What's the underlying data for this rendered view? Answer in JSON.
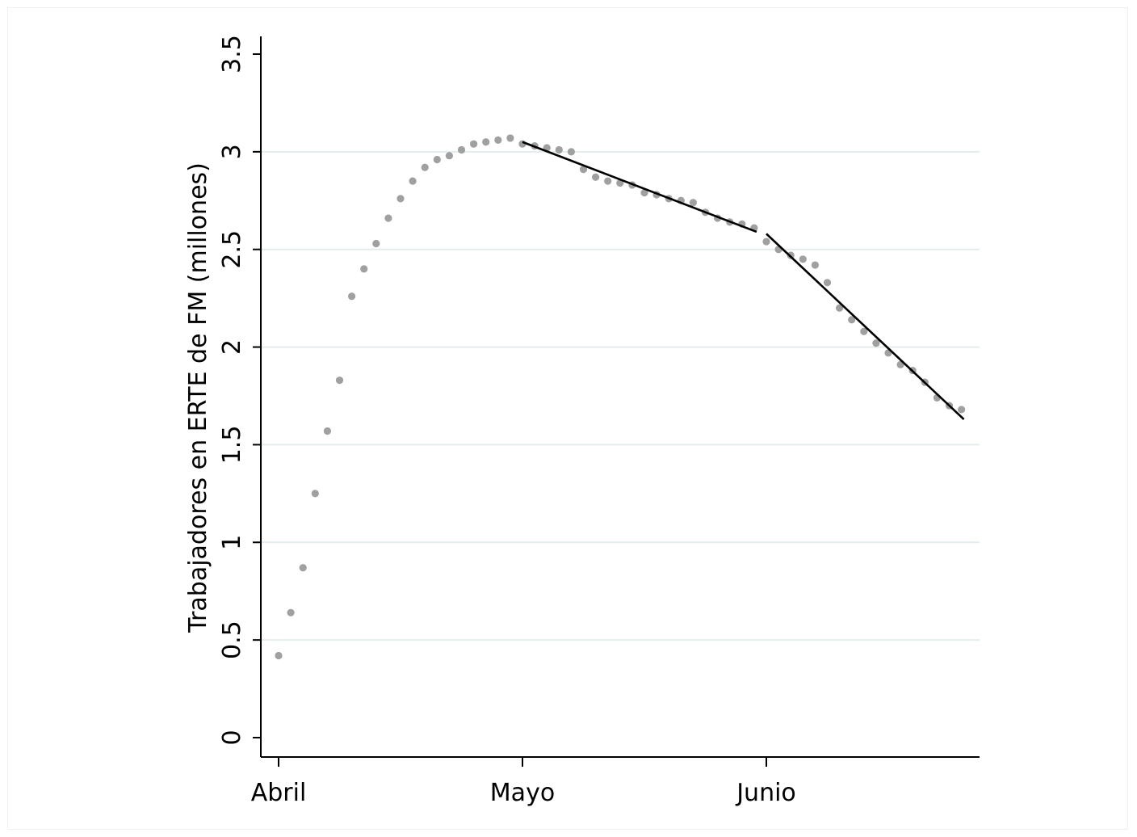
{
  "chart_data": {
    "type": "scatter",
    "title": "",
    "xlabel": "",
    "ylabel": "Trabajadores en ERTE de FM (millones)",
    "ylim": [
      0,
      3.5
    ],
    "yticks": [
      {
        "value": 0,
        "label": "0"
      },
      {
        "value": 0.5,
        "label": "0.5"
      },
      {
        "value": 1,
        "label": "1"
      },
      {
        "value": 1.5,
        "label": "1.5"
      },
      {
        "value": 2,
        "label": "2"
      },
      {
        "value": 2.5,
        "label": "2.5"
      },
      {
        "value": 3,
        "label": "3"
      },
      {
        "value": 3.5,
        "label": "3.5"
      }
    ],
    "xticks": [
      {
        "value": 0,
        "label": "Abril"
      },
      {
        "value": 20,
        "label": "Mayo"
      },
      {
        "value": 40,
        "label": "Junio"
      }
    ],
    "xlim": [
      -1.4,
      57.5
    ],
    "grid": true,
    "series": [
      {
        "kind": "points",
        "color": "#a0a0a0",
        "x": [
          0,
          1,
          2,
          3,
          4,
          5,
          6,
          7,
          8,
          9,
          10,
          11,
          12,
          13,
          14,
          15,
          16,
          17,
          18,
          19,
          20,
          21,
          22,
          23,
          24,
          25,
          26,
          27,
          28,
          29,
          30,
          31,
          32,
          33,
          34,
          35,
          36,
          37,
          38,
          39,
          40,
          41,
          42,
          43,
          44,
          45,
          46,
          47,
          48,
          49,
          50,
          51,
          52,
          53,
          54,
          55,
          56
        ],
        "y": [
          0.42,
          0.64,
          0.87,
          1.25,
          1.57,
          1.83,
          2.26,
          2.4,
          2.53,
          2.66,
          2.76,
          2.85,
          2.92,
          2.96,
          2.98,
          3.01,
          3.04,
          3.05,
          3.06,
          3.07,
          3.04,
          3.03,
          3.02,
          3.01,
          3.0,
          2.91,
          2.87,
          2.85,
          2.84,
          2.83,
          2.79,
          2.78,
          2.76,
          2.75,
          2.74,
          2.69,
          2.66,
          2.64,
          2.63,
          2.61,
          2.54,
          2.5,
          2.47,
          2.45,
          2.42,
          2.33,
          2.2,
          2.14,
          2.08,
          2.02,
          1.97,
          1.91,
          1.88,
          1.82,
          1.74,
          1.7,
          1.68
        ]
      },
      {
        "kind": "line",
        "color": "#000000",
        "x": [
          20,
          39.2
        ],
        "y": [
          3.05,
          2.59
        ]
      },
      {
        "kind": "line",
        "color": "#000000",
        "x": [
          40,
          56.2
        ],
        "y": [
          2.58,
          1.63
        ]
      }
    ]
  }
}
